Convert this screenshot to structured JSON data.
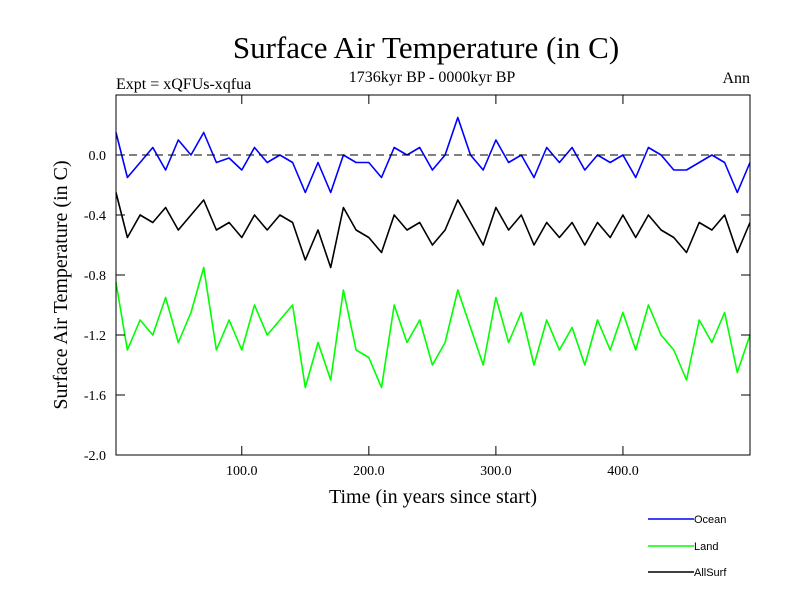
{
  "chart_data": {
    "type": "line",
    "title": "Surface Air Temperature (in C)",
    "subtitle": "1736kyr BP - 0000kyr BP",
    "top_left_label": "Expt = xQFUs-xqfua",
    "top_right_label": "Ann",
    "xlabel": "Time (in years since start)",
    "ylabel": "Surface Air Temperature (in C)",
    "xlim": [
      1,
      500
    ],
    "ylim": [
      -2.0,
      0.4
    ],
    "x_ticks": [
      100,
      200,
      300,
      400
    ],
    "x_tick_labels": [
      "100.0",
      "200.0",
      "300.0",
      "400.0"
    ],
    "y_ticks": [
      -2.0,
      -1.6,
      -1.2,
      -0.8,
      -0.4,
      0.0
    ],
    "y_tick_labels": [
      "-2.0",
      "-1.6",
      "-1.2",
      "-0.8",
      "-0.4",
      "0.0"
    ],
    "reference_line": 0.0,
    "legend_position": "bottom-right",
    "series": [
      {
        "name": "Ocean",
        "color": "#0000ff",
        "x": [
          1,
          10,
          20,
          30,
          40,
          50,
          60,
          70,
          80,
          90,
          100,
          110,
          120,
          130,
          140,
          150,
          160,
          170,
          180,
          190,
          200,
          210,
          220,
          230,
          240,
          250,
          260,
          270,
          280,
          290,
          300,
          310,
          320,
          330,
          340,
          350,
          360,
          370,
          380,
          390,
          400,
          410,
          420,
          430,
          440,
          450,
          460,
          470,
          480,
          490,
          500
        ],
        "values": [
          0.15,
          -0.15,
          -0.05,
          0.05,
          -0.1,
          0.1,
          0.0,
          0.15,
          -0.05,
          -0.02,
          -0.1,
          0.05,
          -0.05,
          0.0,
          -0.05,
          -0.25,
          -0.05,
          -0.25,
          0.0,
          -0.05,
          -0.05,
          -0.15,
          0.05,
          0.0,
          0.05,
          -0.1,
          0.0,
          0.25,
          0.0,
          -0.1,
          0.1,
          -0.05,
          0.0,
          -0.15,
          0.05,
          -0.05,
          0.05,
          -0.1,
          0.0,
          -0.05,
          0.0,
          -0.15,
          0.05,
          0.0,
          -0.1,
          -0.1,
          -0.05,
          0.0,
          -0.05,
          -0.25,
          -0.05
        ]
      },
      {
        "name": "Land",
        "color": "#00ff00",
        "x": [
          1,
          10,
          20,
          30,
          40,
          50,
          60,
          70,
          80,
          90,
          100,
          110,
          120,
          130,
          140,
          150,
          160,
          170,
          180,
          190,
          200,
          210,
          220,
          230,
          240,
          250,
          260,
          270,
          280,
          290,
          300,
          310,
          320,
          330,
          340,
          350,
          360,
          370,
          380,
          390,
          400,
          410,
          420,
          430,
          440,
          450,
          460,
          470,
          480,
          490,
          500
        ],
        "values": [
          -0.85,
          -1.3,
          -1.1,
          -1.2,
          -0.95,
          -1.25,
          -1.05,
          -0.75,
          -1.3,
          -1.1,
          -1.3,
          -1.0,
          -1.2,
          -1.1,
          -1.0,
          -1.55,
          -1.25,
          -1.5,
          -0.9,
          -1.3,
          -1.35,
          -1.55,
          -1.0,
          -1.25,
          -1.1,
          -1.4,
          -1.25,
          -0.9,
          -1.15,
          -1.4,
          -0.95,
          -1.25,
          -1.05,
          -1.4,
          -1.1,
          -1.3,
          -1.15,
          -1.4,
          -1.1,
          -1.3,
          -1.05,
          -1.3,
          -1.0,
          -1.2,
          -1.3,
          -1.5,
          -1.1,
          -1.25,
          -1.05,
          -1.45,
          -1.2
        ]
      },
      {
        "name": "AllSurf",
        "color": "#000000",
        "x": [
          1,
          10,
          20,
          30,
          40,
          50,
          60,
          70,
          80,
          90,
          100,
          110,
          120,
          130,
          140,
          150,
          160,
          170,
          180,
          190,
          200,
          210,
          220,
          230,
          240,
          250,
          260,
          270,
          280,
          290,
          300,
          310,
          320,
          330,
          340,
          350,
          360,
          370,
          380,
          390,
          400,
          410,
          420,
          430,
          440,
          450,
          460,
          470,
          480,
          490,
          500
        ],
        "values": [
          -0.25,
          -0.55,
          -0.4,
          -0.45,
          -0.35,
          -0.5,
          -0.4,
          -0.3,
          -0.5,
          -0.45,
          -0.55,
          -0.4,
          -0.5,
          -0.4,
          -0.45,
          -0.7,
          -0.5,
          -0.75,
          -0.35,
          -0.5,
          -0.55,
          -0.65,
          -0.4,
          -0.5,
          -0.45,
          -0.6,
          -0.5,
          -0.3,
          -0.45,
          -0.6,
          -0.35,
          -0.5,
          -0.4,
          -0.6,
          -0.45,
          -0.55,
          -0.45,
          -0.6,
          -0.45,
          -0.55,
          -0.4,
          -0.55,
          -0.4,
          -0.5,
          -0.55,
          -0.65,
          -0.45,
          -0.5,
          -0.4,
          -0.65,
          -0.45
        ]
      }
    ]
  }
}
